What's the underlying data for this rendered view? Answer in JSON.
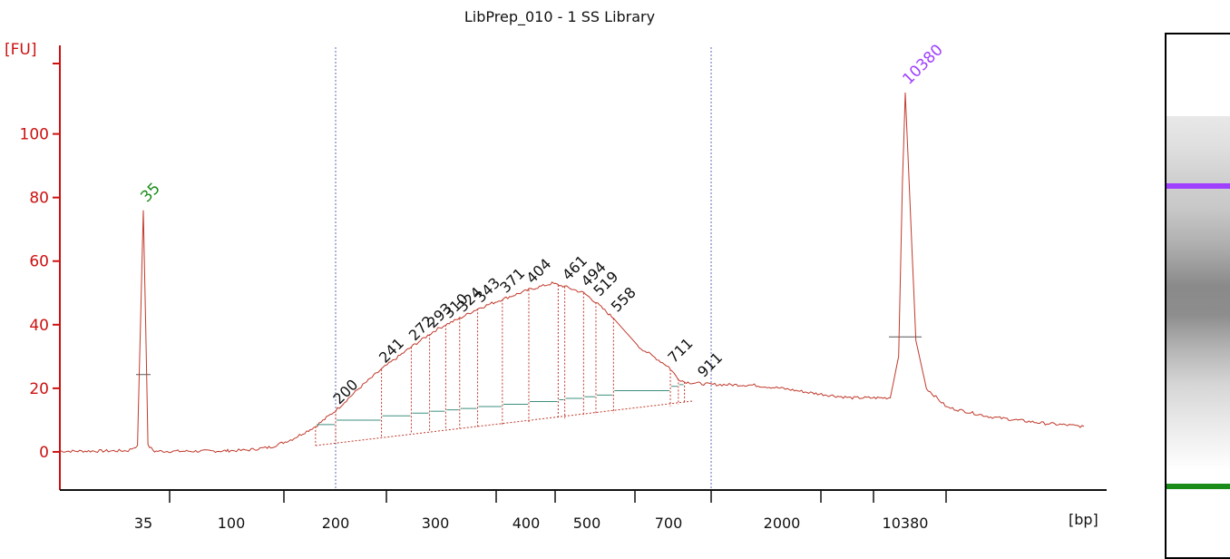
{
  "chart_data": {
    "type": "line",
    "title": "LibPrep_010 - 1  SS Library",
    "ylabel": "[FU]",
    "xlabel": "[bp]",
    "ylim": [
      -12,
      125
    ],
    "y_ticks": [
      0,
      20,
      40,
      60,
      80,
      100
    ],
    "x_tick_labels": [
      "35",
      "100",
      "200",
      "300",
      "400",
      "500",
      "700",
      "2000",
      "10380"
    ],
    "grid": false,
    "marker_peaks": [
      {
        "label": "35",
        "size_bp": 35,
        "fu": 76,
        "color": "#1a8c1a"
      },
      {
        "label": "10380",
        "size_bp": 10380,
        "fu": 113,
        "color": "#a040ff"
      }
    ],
    "region_bounds_bp": [
      200,
      1000
    ],
    "peak_labels": [
      "200",
      "241",
      "272",
      "293",
      "310",
      "324",
      "343",
      "371",
      "404",
      "461",
      "494",
      "519",
      "558",
      "711",
      "911"
    ],
    "trace": {
      "color": "#c0392b",
      "points": [
        [
          15,
          0.2
        ],
        [
          25,
          0.3
        ],
        [
          30,
          0.4
        ],
        [
          33,
          2
        ],
        [
          34,
          40
        ],
        [
          35,
          76
        ],
        [
          36,
          40
        ],
        [
          37,
          2
        ],
        [
          40,
          0.2
        ],
        [
          60,
          0.2
        ],
        [
          90,
          0.3
        ],
        [
          110,
          0.5
        ],
        [
          130,
          1.5
        ],
        [
          150,
          4
        ],
        [
          175,
          8
        ],
        [
          200,
          13
        ],
        [
          220,
          20
        ],
        [
          241,
          26
        ],
        [
          272,
          33
        ],
        [
          293,
          37
        ],
        [
          310,
          40
        ],
        [
          324,
          42
        ],
        [
          343,
          45
        ],
        [
          371,
          48
        ],
        [
          404,
          51
        ],
        [
          440,
          53
        ],
        [
          461,
          52
        ],
        [
          494,
          50
        ],
        [
          519,
          47
        ],
        [
          558,
          42
        ],
        [
          620,
          33
        ],
        [
          711,
          26
        ],
        [
          760,
          23
        ],
        [
          800,
          22
        ],
        [
          911,
          21.5
        ],
        [
          1000,
          21.2
        ],
        [
          1500,
          21
        ],
        [
          2000,
          20
        ],
        [
          3000,
          18.5
        ],
        [
          5000,
          17
        ],
        [
          8500,
          17
        ],
        [
          9500,
          30
        ],
        [
          10000,
          85
        ],
        [
          10380,
          113
        ],
        [
          10800,
          80
        ],
        [
          11400,
          35
        ],
        [
          12500,
          20
        ],
        [
          15000,
          14
        ],
        [
          22000,
          11
        ],
        [
          35000,
          9
        ],
        [
          50000,
          8
        ]
      ]
    },
    "colors": {
      "axis": "#cc1111",
      "trace": "#c0392b",
      "baseline": "#3f8f7f",
      "bounds": "#5b6bb5"
    },
    "gel": {
      "bands": [
        {
          "name": "upper-marker",
          "fraction": 0.29,
          "color": "#a040ff"
        },
        {
          "name": "lower-marker",
          "fraction": 0.865,
          "color": "#1a8c1a"
        }
      ]
    }
  }
}
